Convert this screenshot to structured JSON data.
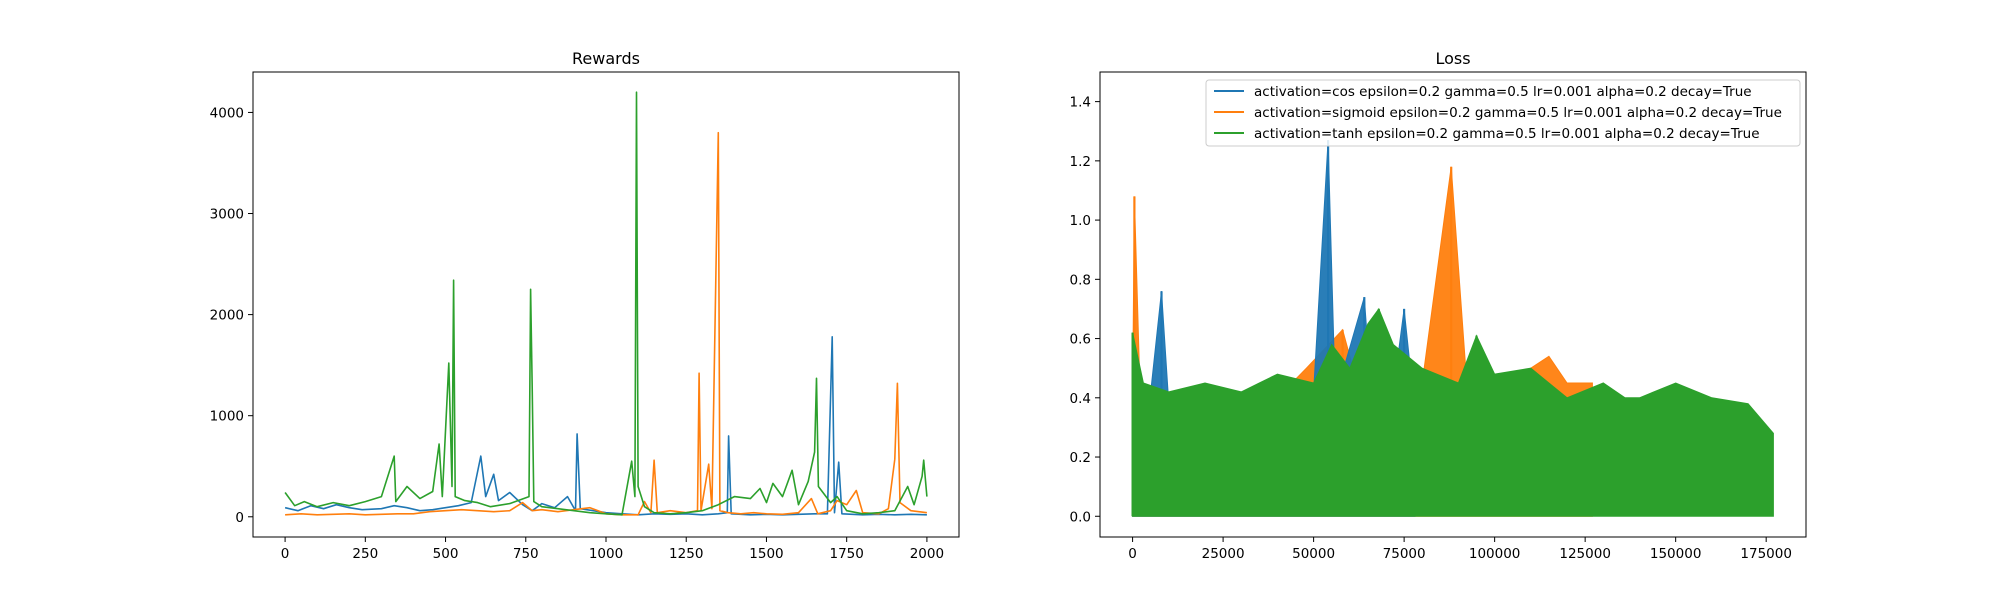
{
  "chart_data": [
    {
      "type": "line",
      "title": "Rewards",
      "xlabel": "",
      "ylabel": "",
      "xlim": [
        -100,
        2100
      ],
      "ylim": [
        -200,
        4400
      ],
      "xticks": [
        "0",
        "250",
        "500",
        "750",
        "1000",
        "1250",
        "1500",
        "1750",
        "2000"
      ],
      "yticks": [
        "0",
        "1000",
        "2000",
        "3000",
        "4000"
      ],
      "grid": false,
      "series": [
        {
          "color": "#1f77b4",
          "points": [
            [
              0,
              90
            ],
            [
              40,
              60
            ],
            [
              80,
              110
            ],
            [
              120,
              80
            ],
            [
              160,
              120
            ],
            [
              200,
              90
            ],
            [
              240,
              70
            ],
            [
              300,
              80
            ],
            [
              340,
              110
            ],
            [
              380,
              90
            ],
            [
              420,
              60
            ],
            [
              460,
              70
            ],
            [
              500,
              90
            ],
            [
              540,
              110
            ],
            [
              580,
              140
            ],
            [
              610,
              600
            ],
            [
              625,
              200
            ],
            [
              650,
              420
            ],
            [
              665,
              160
            ],
            [
              700,
              240
            ],
            [
              740,
              120
            ],
            [
              770,
              60
            ],
            [
              800,
              130
            ],
            [
              840,
              90
            ],
            [
              880,
              200
            ],
            [
              905,
              60
            ],
            [
              910,
              820
            ],
            [
              920,
              80
            ],
            [
              960,
              60
            ],
            [
              1000,
              40
            ],
            [
              1050,
              30
            ],
            [
              1100,
              20
            ],
            [
              1150,
              30
            ],
            [
              1200,
              25
            ],
            [
              1250,
              30
            ],
            [
              1300,
              20
            ],
            [
              1350,
              30
            ],
            [
              1378,
              40
            ],
            [
              1382,
              800
            ],
            [
              1390,
              30
            ],
            [
              1450,
              20
            ],
            [
              1500,
              25
            ],
            [
              1550,
              20
            ],
            [
              1600,
              25
            ],
            [
              1650,
              30
            ],
            [
              1690,
              30
            ],
            [
              1705,
              1780
            ],
            [
              1712,
              40
            ],
            [
              1725,
              540
            ],
            [
              1735,
              30
            ],
            [
              1800,
              20
            ],
            [
              1850,
              25
            ],
            [
              1900,
              20
            ],
            [
              1950,
              25
            ],
            [
              2000,
              20
            ]
          ]
        },
        {
          "color": "#ff7f0e",
          "points": [
            [
              0,
              20
            ],
            [
              50,
              30
            ],
            [
              100,
              20
            ],
            [
              150,
              25
            ],
            [
              200,
              30
            ],
            [
              250,
              20
            ],
            [
              300,
              25
            ],
            [
              350,
              30
            ],
            [
              400,
              30
            ],
            [
              450,
              50
            ],
            [
              500,
              60
            ],
            [
              550,
              70
            ],
            [
              600,
              60
            ],
            [
              650,
              50
            ],
            [
              700,
              60
            ],
            [
              740,
              140
            ],
            [
              770,
              60
            ],
            [
              800,
              70
            ],
            [
              850,
              50
            ],
            [
              900,
              70
            ],
            [
              950,
              90
            ],
            [
              1000,
              30
            ],
            [
              1050,
              20
            ],
            [
              1100,
              20
            ],
            [
              1120,
              150
            ],
            [
              1140,
              40
            ],
            [
              1150,
              560
            ],
            [
              1160,
              40
            ],
            [
              1200,
              60
            ],
            [
              1250,
              40
            ],
            [
              1285,
              60
            ],
            [
              1290,
              1420
            ],
            [
              1296,
              60
            ],
            [
              1320,
              520
            ],
            [
              1330,
              80
            ],
            [
              1350,
              3800
            ],
            [
              1355,
              60
            ],
            [
              1380,
              40
            ],
            [
              1420,
              30
            ],
            [
              1460,
              40
            ],
            [
              1500,
              30
            ],
            [
              1550,
              25
            ],
            [
              1600,
              40
            ],
            [
              1640,
              180
            ],
            [
              1660,
              30
            ],
            [
              1700,
              60
            ],
            [
              1720,
              160
            ],
            [
              1750,
              120
            ],
            [
              1780,
              260
            ],
            [
              1800,
              40
            ],
            [
              1850,
              30
            ],
            [
              1880,
              80
            ],
            [
              1900,
              570
            ],
            [
              1908,
              1320
            ],
            [
              1916,
              140
            ],
            [
              1950,
              60
            ],
            [
              2000,
              40
            ]
          ]
        },
        {
          "color": "#2ca02c",
          "points": [
            [
              0,
              240
            ],
            [
              30,
              110
            ],
            [
              60,
              150
            ],
            [
              100,
              100
            ],
            [
              150,
              140
            ],
            [
              200,
              110
            ],
            [
              250,
              150
            ],
            [
              300,
              200
            ],
            [
              340,
              600
            ],
            [
              345,
              150
            ],
            [
              380,
              300
            ],
            [
              420,
              180
            ],
            [
              460,
              250
            ],
            [
              480,
              720
            ],
            [
              490,
              200
            ],
            [
              500,
              850
            ],
            [
              510,
              1520
            ],
            [
              520,
              300
            ],
            [
              525,
              2340
            ],
            [
              530,
              200
            ],
            [
              560,
              160
            ],
            [
              600,
              140
            ],
            [
              640,
              100
            ],
            [
              700,
              130
            ],
            [
              760,
              200
            ],
            [
              765,
              2250
            ],
            [
              770,
              1280
            ],
            [
              775,
              150
            ],
            [
              800,
              100
            ],
            [
              850,
              80
            ],
            [
              900,
              60
            ],
            [
              950,
              40
            ],
            [
              1000,
              30
            ],
            [
              1050,
              20
            ],
            [
              1080,
              550
            ],
            [
              1090,
              200
            ],
            [
              1095,
              4200
            ],
            [
              1100,
              300
            ],
            [
              1120,
              100
            ],
            [
              1150,
              40
            ],
            [
              1200,
              30
            ],
            [
              1250,
              40
            ],
            [
              1300,
              60
            ],
            [
              1350,
              120
            ],
            [
              1400,
              200
            ],
            [
              1450,
              180
            ],
            [
              1480,
              280
            ],
            [
              1500,
              140
            ],
            [
              1520,
              330
            ],
            [
              1550,
              200
            ],
            [
              1580,
              460
            ],
            [
              1600,
              120
            ],
            [
              1630,
              350
            ],
            [
              1650,
              640
            ],
            [
              1656,
              1370
            ],
            [
              1662,
              300
            ],
            [
              1700,
              140
            ],
            [
              1720,
              200
            ],
            [
              1750,
              60
            ],
            [
              1800,
              30
            ],
            [
              1850,
              40
            ],
            [
              1900,
              60
            ],
            [
              1940,
              300
            ],
            [
              1960,
              120
            ],
            [
              1985,
              400
            ],
            [
              1990,
              560
            ],
            [
              2000,
              200
            ]
          ]
        }
      ]
    },
    {
      "type": "line",
      "title": "Loss",
      "xlabel": "",
      "ylabel": "",
      "xlim": [
        -9000,
        186000
      ],
      "ylim": [
        -0.07,
        1.5
      ],
      "xticks": [
        "0",
        "25000",
        "50000",
        "75000",
        "100000",
        "125000",
        "150000",
        "175000"
      ],
      "yticks": [
        "0.0",
        "0.2",
        "0.4",
        "0.6",
        "0.8",
        "1.0",
        "1.2",
        "1.4"
      ],
      "grid": false,
      "legend": {
        "placement": "upper right",
        "entries": [
          "activation=cos epsilon=0.2 gamma=0.5 lr=0.001 alpha=0.2 decay=True",
          "activation=sigmoid epsilon=0.2 gamma=0.5 lr=0.001 alpha=0.2 decay=True",
          "activation=tanh epsilon=0.2 gamma=0.5 lr=0.001 alpha=0.2 decay=True"
        ]
      },
      "series": [
        {
          "color": "#1f77b4",
          "x_end": 78000,
          "envelope": [
            [
              0,
              0.35
            ],
            [
              5000,
              0.42
            ],
            [
              8000,
              0.76
            ],
            [
              10000,
              0.38
            ],
            [
              20000,
              0.4
            ],
            [
              30000,
              0.42
            ],
            [
              40000,
              0.4
            ],
            [
              50000,
              0.42
            ],
            [
              54000,
              1.27
            ],
            [
              56000,
              0.4
            ],
            [
              64000,
              0.74
            ],
            [
              66000,
              0.4
            ],
            [
              70000,
              0.62
            ],
            [
              72000,
              0.42
            ],
            [
              75000,
              0.7
            ],
            [
              78000,
              0.35
            ]
          ],
          "peaks": [
            [
              8000,
              0.76
            ],
            [
              54000,
              1.27
            ],
            [
              64000,
              0.74
            ],
            [
              70000,
              0.62
            ],
            [
              75000,
              0.7
            ]
          ]
        },
        {
          "color": "#ff7f0e",
          "x_end": 127000,
          "envelope": [
            [
              0,
              0.4
            ],
            [
              500,
              1.08
            ],
            [
              2000,
              0.45
            ],
            [
              10000,
              0.35
            ],
            [
              20000,
              0.35
            ],
            [
              40000,
              0.4
            ],
            [
              48000,
              0.5
            ],
            [
              58000,
              0.63
            ],
            [
              62000,
              0.45
            ],
            [
              70000,
              0.55
            ],
            [
              80000,
              0.45
            ],
            [
              88000,
              1.18
            ],
            [
              92000,
              0.5
            ],
            [
              100000,
              0.45
            ],
            [
              110000,
              0.5
            ],
            [
              115000,
              0.54
            ],
            [
              120000,
              0.45
            ],
            [
              127000,
              0.45
            ]
          ],
          "peaks": [
            [
              500,
              1.08
            ],
            [
              58000,
              0.63
            ],
            [
              88000,
              1.18
            ]
          ]
        },
        {
          "color": "#2ca02c",
          "x_end": 177000,
          "envelope": [
            [
              0,
              0.62
            ],
            [
              3000,
              0.45
            ],
            [
              10000,
              0.42
            ],
            [
              20000,
              0.45
            ],
            [
              30000,
              0.42
            ],
            [
              40000,
              0.48
            ],
            [
              50000,
              0.45
            ],
            [
              55000,
              0.58
            ],
            [
              60000,
              0.5
            ],
            [
              65000,
              0.65
            ],
            [
              68000,
              0.7
            ],
            [
              72000,
              0.58
            ],
            [
              80000,
              0.5
            ],
            [
              90000,
              0.45
            ],
            [
              95000,
              0.61
            ],
            [
              100000,
              0.48
            ],
            [
              110000,
              0.5
            ],
            [
              120000,
              0.4
            ],
            [
              130000,
              0.45
            ],
            [
              136000,
              0.4
            ],
            [
              140000,
              0.4
            ],
            [
              150000,
              0.45
            ],
            [
              160000,
              0.4
            ],
            [
              170000,
              0.38
            ],
            [
              177000,
              0.28
            ]
          ],
          "peaks": [
            [
              0,
              0.62
            ],
            [
              68000,
              0.7
            ],
            [
              95000,
              0.61
            ]
          ]
        }
      ]
    }
  ]
}
